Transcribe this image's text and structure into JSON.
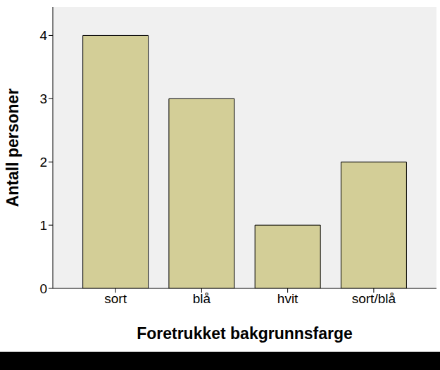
{
  "chart_data": {
    "type": "bar",
    "categories": [
      "sort",
      "blå",
      "hvit",
      "sort/blå"
    ],
    "values": [
      4,
      3,
      1,
      2
    ],
    "color": "#d3ce97",
    "x_label": "Foretrukket bakgrunnsfarge",
    "y_label": "Antall personer",
    "ylim": [
      0,
      4.45
    ],
    "yticks": [
      0,
      1,
      2,
      3,
      4
    ],
    "grid": false
  }
}
